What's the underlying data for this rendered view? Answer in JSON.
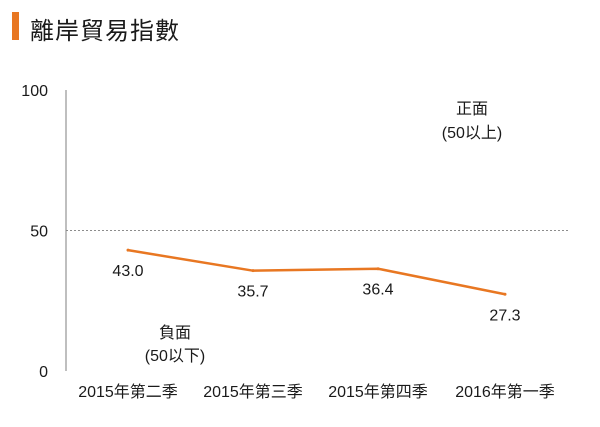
{
  "header": {
    "title": "離岸貿易指數"
  },
  "colors": {
    "accent": "#e87722",
    "line": "#e87722",
    "axis": "#7f7f7f",
    "reference_line": "#8c8c8c",
    "text": "#1a1a1a"
  },
  "chart_data": {
    "type": "line",
    "title": "離岸貿易指數",
    "categories": [
      "2015年第二季",
      "2015年第三季",
      "2015年第四季",
      "2016年第一季"
    ],
    "series": [
      {
        "values": [
          43.0,
          35.7,
          36.4,
          27.3
        ],
        "labels": [
          "43.0",
          "35.7",
          "36.4",
          "27.3"
        ]
      }
    ],
    "ylim": [
      0,
      100
    ],
    "y_ticks": [
      {
        "value": 0,
        "label": "0"
      },
      {
        "value": 50,
        "label": "50"
      },
      {
        "value": 100,
        "label": "100"
      }
    ],
    "reference_line": {
      "value": 50,
      "style": "dotted"
    },
    "annotations": {
      "positive": {
        "line1": "正面",
        "line2": "(50以上)"
      },
      "negative": {
        "line1": "負面",
        "line2": "(50以下)"
      }
    },
    "grid": false,
    "legend": "none"
  }
}
